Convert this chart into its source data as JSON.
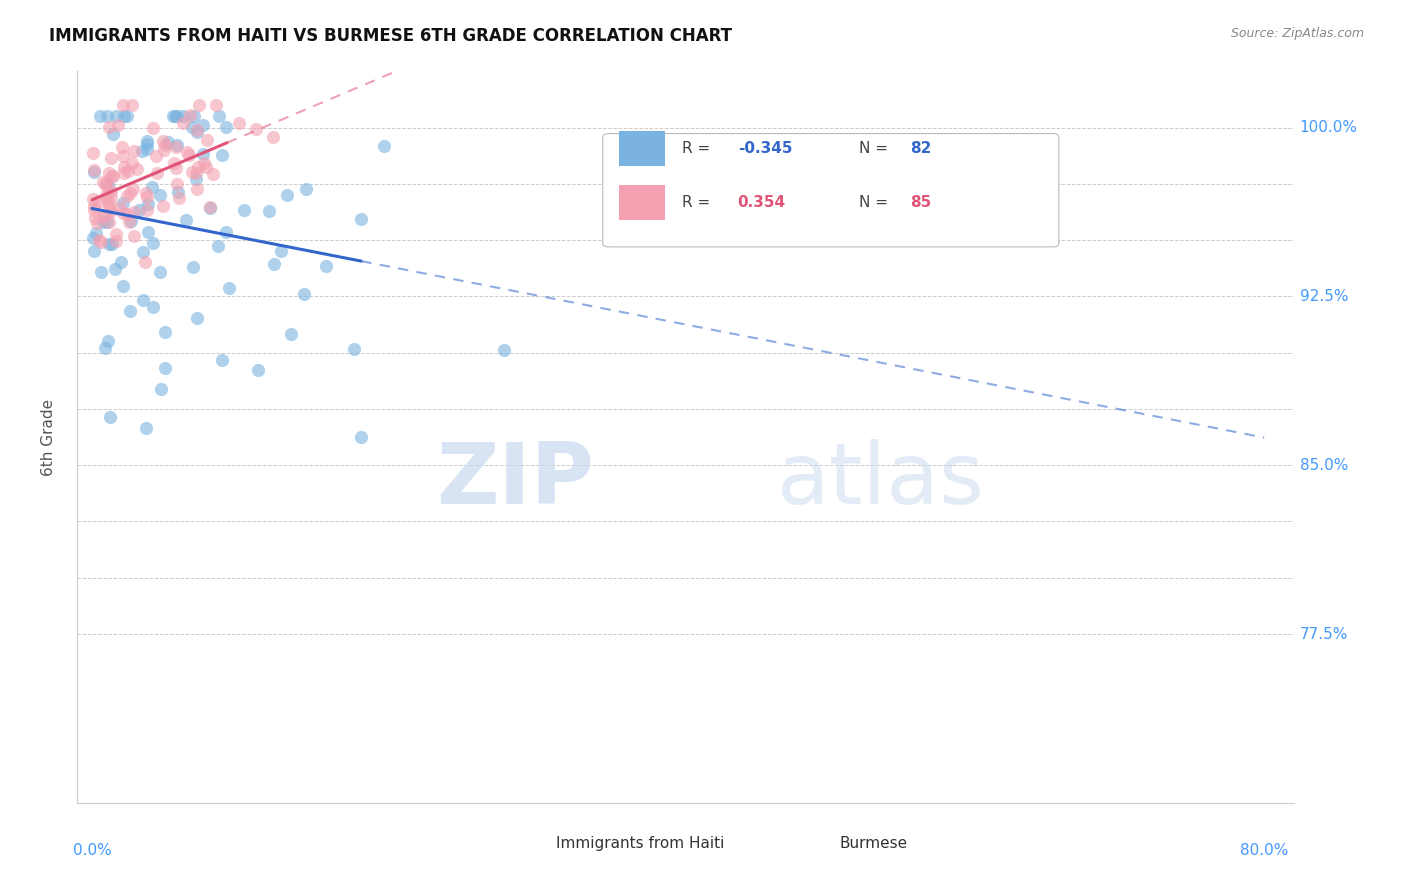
{
  "title": "IMMIGRANTS FROM HAITI VS BURMESE 6TH GRADE CORRELATION CHART",
  "source": "Source: ZipAtlas.com",
  "ylabel": "6th Grade",
  "ylim": [
    0.7,
    1.025
  ],
  "xlim": [
    -0.01,
    0.82
  ],
  "legend_r_haiti": "-0.345",
  "legend_n_haiti": "82",
  "legend_r_burmese": "0.354",
  "legend_n_burmese": "85",
  "haiti_color": "#7ab3e0",
  "burmese_color": "#f4a0b0",
  "haiti_line_color": "#3366cc",
  "burmese_line_color": "#e05577",
  "background_color": "#ffffff",
  "watermark_zip": "ZIP",
  "watermark_atlas": "atlas",
  "ytick_vals": [
    0.775,
    0.8,
    0.825,
    0.85,
    0.875,
    0.9,
    0.925,
    0.95,
    0.975,
    1.0
  ],
  "ytick_labeled": [
    [
      1.0,
      "100.0%"
    ],
    [
      0.925,
      "92.5%"
    ],
    [
      0.85,
      "85.0%"
    ],
    [
      0.775,
      "77.5%"
    ]
  ]
}
